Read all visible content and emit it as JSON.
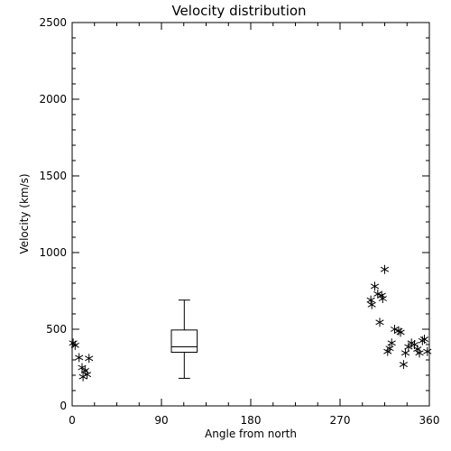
{
  "chart_data": {
    "type": "scatter",
    "title": "Velocity distribution",
    "xlabel": "Angle from north",
    "ylabel": "Velocity (km/s)",
    "xlim": [
      0,
      360
    ],
    "ylim": [
      0,
      2500
    ],
    "xticks": [
      0,
      90,
      180,
      270,
      360
    ],
    "yticks": [
      0,
      500,
      1000,
      1500,
      2000,
      2500
    ],
    "grid": false,
    "marker": "asterisk",
    "points": [
      {
        "x": 1,
        "y": 410
      },
      {
        "x": 3,
        "y": 395
      },
      {
        "x": 7,
        "y": 315
      },
      {
        "x": 10,
        "y": 250
      },
      {
        "x": 11,
        "y": 190
      },
      {
        "x": 13,
        "y": 230
      },
      {
        "x": 15,
        "y": 205
      },
      {
        "x": 17,
        "y": 310
      },
      {
        "x": 301,
        "y": 690
      },
      {
        "x": 302,
        "y": 660
      },
      {
        "x": 305,
        "y": 780
      },
      {
        "x": 308,
        "y": 730
      },
      {
        "x": 310,
        "y": 545
      },
      {
        "x": 312,
        "y": 720
      },
      {
        "x": 313,
        "y": 700
      },
      {
        "x": 315,
        "y": 890
      },
      {
        "x": 318,
        "y": 355
      },
      {
        "x": 320,
        "y": 375
      },
      {
        "x": 322,
        "y": 410
      },
      {
        "x": 325,
        "y": 500
      },
      {
        "x": 329,
        "y": 490
      },
      {
        "x": 331,
        "y": 480
      },
      {
        "x": 334,
        "y": 270
      },
      {
        "x": 336,
        "y": 345
      },
      {
        "x": 339,
        "y": 385
      },
      {
        "x": 342,
        "y": 410
      },
      {
        "x": 345,
        "y": 400
      },
      {
        "x": 348,
        "y": 370
      },
      {
        "x": 350,
        "y": 345
      },
      {
        "x": 353,
        "y": 425
      },
      {
        "x": 355,
        "y": 435
      },
      {
        "x": 358,
        "y": 355
      }
    ],
    "boxplot": {
      "x": 113,
      "width": 26,
      "whisker_low": 180,
      "q1": 350,
      "median": 385,
      "q3": 495,
      "whisker_high": 690
    }
  }
}
